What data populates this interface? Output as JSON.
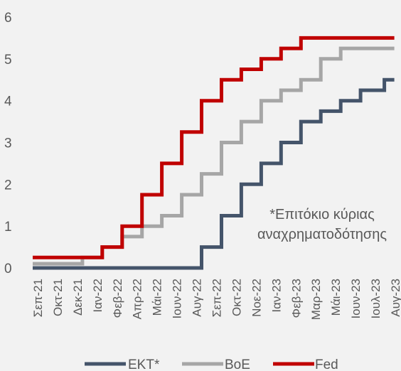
{
  "chart_data": {
    "type": "line",
    "step": true,
    "categories": [
      "Σεπ-21",
      "Οκτ-21",
      "Δεκ-21",
      "Ιαν-22",
      "Φεβ-22",
      "Απρ-22",
      "Μάι-22",
      "Ιουν-22",
      "Αυγ-22",
      "Σεπ-22",
      "Οκτ-22",
      "Νοε-22",
      "Ιαν-23",
      "Φεβ-23",
      "Μαρ-23",
      "Μάι-23",
      "Ιουν-23",
      "Ιουλ-23",
      "Αυγ-23"
    ],
    "ylim": [
      0,
      6
    ],
    "yticks": [
      "0",
      "1",
      "2",
      "3",
      "4",
      "5",
      "6"
    ],
    "grid": false,
    "legend_position": "bottom",
    "annotation": [
      "*Επιτόκιο κύριας",
      "αναχρηματοδότησης"
    ],
    "series": [
      {
        "name": "ΕΚΤ*",
        "color": "#44546a",
        "steps": [
          {
            "x": 0,
            "y": 0
          },
          {
            "x": 8.5,
            "y": 0
          },
          {
            "x": 8.5,
            "y": 0.5
          },
          {
            "x": 9.5,
            "y": 0.5
          },
          {
            "x": 9.5,
            "y": 1.25
          },
          {
            "x": 10.5,
            "y": 1.25
          },
          {
            "x": 10.5,
            "y": 2.0
          },
          {
            "x": 11.5,
            "y": 2.0
          },
          {
            "x": 11.5,
            "y": 2.5
          },
          {
            "x": 12.5,
            "y": 2.5
          },
          {
            "x": 12.5,
            "y": 3.0
          },
          {
            "x": 13.5,
            "y": 3.0
          },
          {
            "x": 13.5,
            "y": 3.5
          },
          {
            "x": 14.5,
            "y": 3.5
          },
          {
            "x": 14.5,
            "y": 3.75
          },
          {
            "x": 15.5,
            "y": 3.75
          },
          {
            "x": 15.5,
            "y": 4.0
          },
          {
            "x": 16.5,
            "y": 4.0
          },
          {
            "x": 16.5,
            "y": 4.25
          },
          {
            "x": 17.7,
            "y": 4.25
          },
          {
            "x": 17.7,
            "y": 4.5
          },
          {
            "x": 18.2,
            "y": 4.5
          }
        ]
      },
      {
        "name": "BoE",
        "color": "#a6a6a6",
        "steps": [
          {
            "x": 0,
            "y": 0.1
          },
          {
            "x": 2.5,
            "y": 0.1
          },
          {
            "x": 2.5,
            "y": 0.25
          },
          {
            "x": 3.5,
            "y": 0.25
          },
          {
            "x": 3.5,
            "y": 0.5
          },
          {
            "x": 4.5,
            "y": 0.5
          },
          {
            "x": 4.5,
            "y": 0.75
          },
          {
            "x": 5.5,
            "y": 0.75
          },
          {
            "x": 5.5,
            "y": 1.0
          },
          {
            "x": 6.5,
            "y": 1.0
          },
          {
            "x": 6.5,
            "y": 1.25
          },
          {
            "x": 7.5,
            "y": 1.25
          },
          {
            "x": 7.5,
            "y": 1.75
          },
          {
            "x": 8.5,
            "y": 1.75
          },
          {
            "x": 8.5,
            "y": 2.25
          },
          {
            "x": 9.5,
            "y": 2.25
          },
          {
            "x": 9.5,
            "y": 3.0
          },
          {
            "x": 10.5,
            "y": 3.0
          },
          {
            "x": 10.5,
            "y": 3.5
          },
          {
            "x": 11.5,
            "y": 3.5
          },
          {
            "x": 11.5,
            "y": 4.0
          },
          {
            "x": 12.5,
            "y": 4.0
          },
          {
            "x": 12.5,
            "y": 4.25
          },
          {
            "x": 13.5,
            "y": 4.25
          },
          {
            "x": 13.5,
            "y": 4.5
          },
          {
            "x": 14.5,
            "y": 4.5
          },
          {
            "x": 14.5,
            "y": 5.0
          },
          {
            "x": 15.5,
            "y": 5.0
          },
          {
            "x": 15.5,
            "y": 5.25
          },
          {
            "x": 18.2,
            "y": 5.25
          }
        ]
      },
      {
        "name": "Fed",
        "color": "#c00000",
        "steps": [
          {
            "x": 0,
            "y": 0.25
          },
          {
            "x": 3.5,
            "y": 0.25
          },
          {
            "x": 3.5,
            "y": 0.5
          },
          {
            "x": 4.5,
            "y": 0.5
          },
          {
            "x": 4.5,
            "y": 1.0
          },
          {
            "x": 5.5,
            "y": 1.0
          },
          {
            "x": 5.5,
            "y": 1.75
          },
          {
            "x": 6.5,
            "y": 1.75
          },
          {
            "x": 6.5,
            "y": 2.5
          },
          {
            "x": 7.5,
            "y": 2.5
          },
          {
            "x": 7.5,
            "y": 3.25
          },
          {
            "x": 8.5,
            "y": 3.25
          },
          {
            "x": 8.5,
            "y": 4.0
          },
          {
            "x": 9.5,
            "y": 4.0
          },
          {
            "x": 9.5,
            "y": 4.5
          },
          {
            "x": 10.5,
            "y": 4.5
          },
          {
            "x": 10.5,
            "y": 4.75
          },
          {
            "x": 11.5,
            "y": 4.75
          },
          {
            "x": 11.5,
            "y": 5.0
          },
          {
            "x": 12.5,
            "y": 5.0
          },
          {
            "x": 12.5,
            "y": 5.25
          },
          {
            "x": 13.5,
            "y": 5.25
          },
          {
            "x": 13.5,
            "y": 5.5
          },
          {
            "x": 18.2,
            "y": 5.5
          }
        ]
      }
    ]
  }
}
